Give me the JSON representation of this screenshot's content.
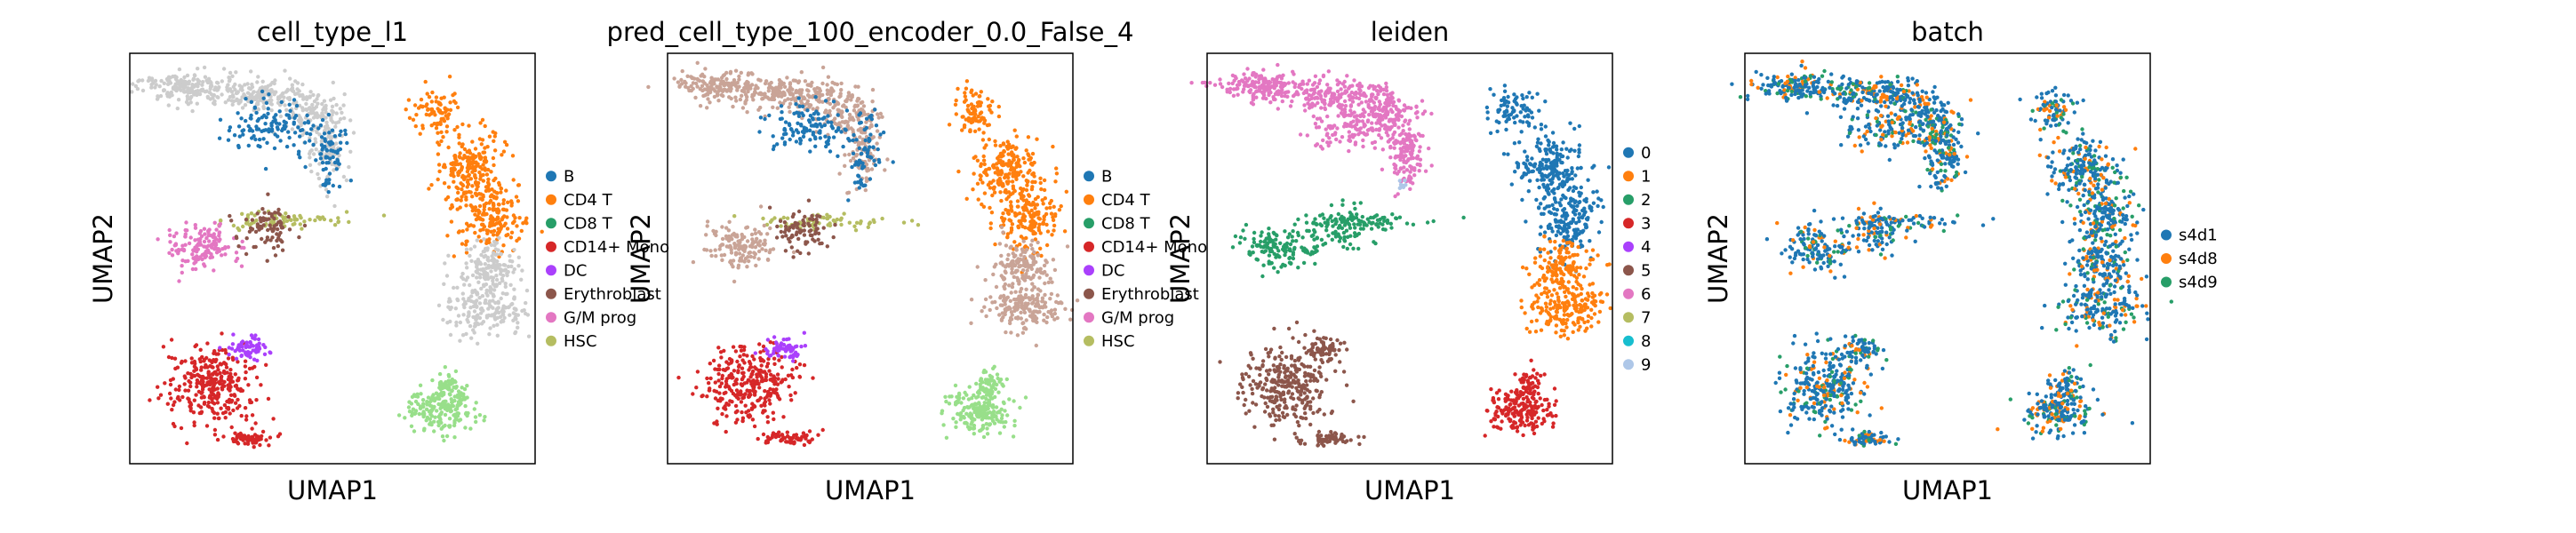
{
  "chart_data": [
    {
      "type": "scatter",
      "title": "cell_type_l1",
      "xlabel": "UMAP1",
      "ylabel": "UMAP2",
      "grid": false,
      "legend_placement": "right",
      "series": [
        {
          "name": "B",
          "color": "#1f77b4"
        },
        {
          "name": "CD4 T",
          "color": "#ff7f0e"
        },
        {
          "name": "CD8 T",
          "color": "#279e68"
        },
        {
          "name": "CD14+ Mono",
          "color": "#d62728"
        },
        {
          "name": "DC",
          "color": "#aa40fc"
        },
        {
          "name": "Erythroblast",
          "color": "#8c564b"
        },
        {
          "name": "G/M prog",
          "color": "#e377c2"
        },
        {
          "name": "HSC",
          "color": "#b5bd61"
        }
      ]
    },
    {
      "type": "scatter",
      "title": "pred_cell_type_100_encoder_0.0_False_4",
      "xlabel": "UMAP1",
      "ylabel": "UMAP2",
      "grid": false,
      "legend_placement": "right",
      "series": [
        {
          "name": "B",
          "color": "#1f77b4"
        },
        {
          "name": "CD4 T",
          "color": "#ff7f0e"
        },
        {
          "name": "CD8 T",
          "color": "#279e68"
        },
        {
          "name": "CD14+ Mono",
          "color": "#d62728"
        },
        {
          "name": "DC",
          "color": "#aa40fc"
        },
        {
          "name": "Erythroblast",
          "color": "#8c564b"
        },
        {
          "name": "G/M prog",
          "color": "#e377c2"
        },
        {
          "name": "HSC",
          "color": "#b5bd61"
        }
      ]
    },
    {
      "type": "scatter",
      "title": "leiden",
      "xlabel": "UMAP1",
      "ylabel": "UMAP2",
      "grid": false,
      "legend_placement": "right",
      "series": [
        {
          "name": "0",
          "color": "#1f77b4"
        },
        {
          "name": "1",
          "color": "#ff7f0e"
        },
        {
          "name": "2",
          "color": "#279e68"
        },
        {
          "name": "3",
          "color": "#d62728"
        },
        {
          "name": "4",
          "color": "#aa40fc"
        },
        {
          "name": "5",
          "color": "#8c564b"
        },
        {
          "name": "6",
          "color": "#e377c2"
        },
        {
          "name": "7",
          "color": "#b5bd61"
        },
        {
          "name": "8",
          "color": "#17becf"
        },
        {
          "name": "9",
          "color": "#aec7e8"
        }
      ]
    },
    {
      "type": "scatter",
      "title": "batch",
      "xlabel": "UMAP1",
      "ylabel": "UMAP2",
      "grid": false,
      "legend_placement": "right",
      "series": [
        {
          "name": "s4d1",
          "color": "#1f77b4"
        },
        {
          "name": "s4d8",
          "color": "#ff7f0e"
        },
        {
          "name": "s4d9",
          "color": "#279e68"
        }
      ]
    }
  ]
}
